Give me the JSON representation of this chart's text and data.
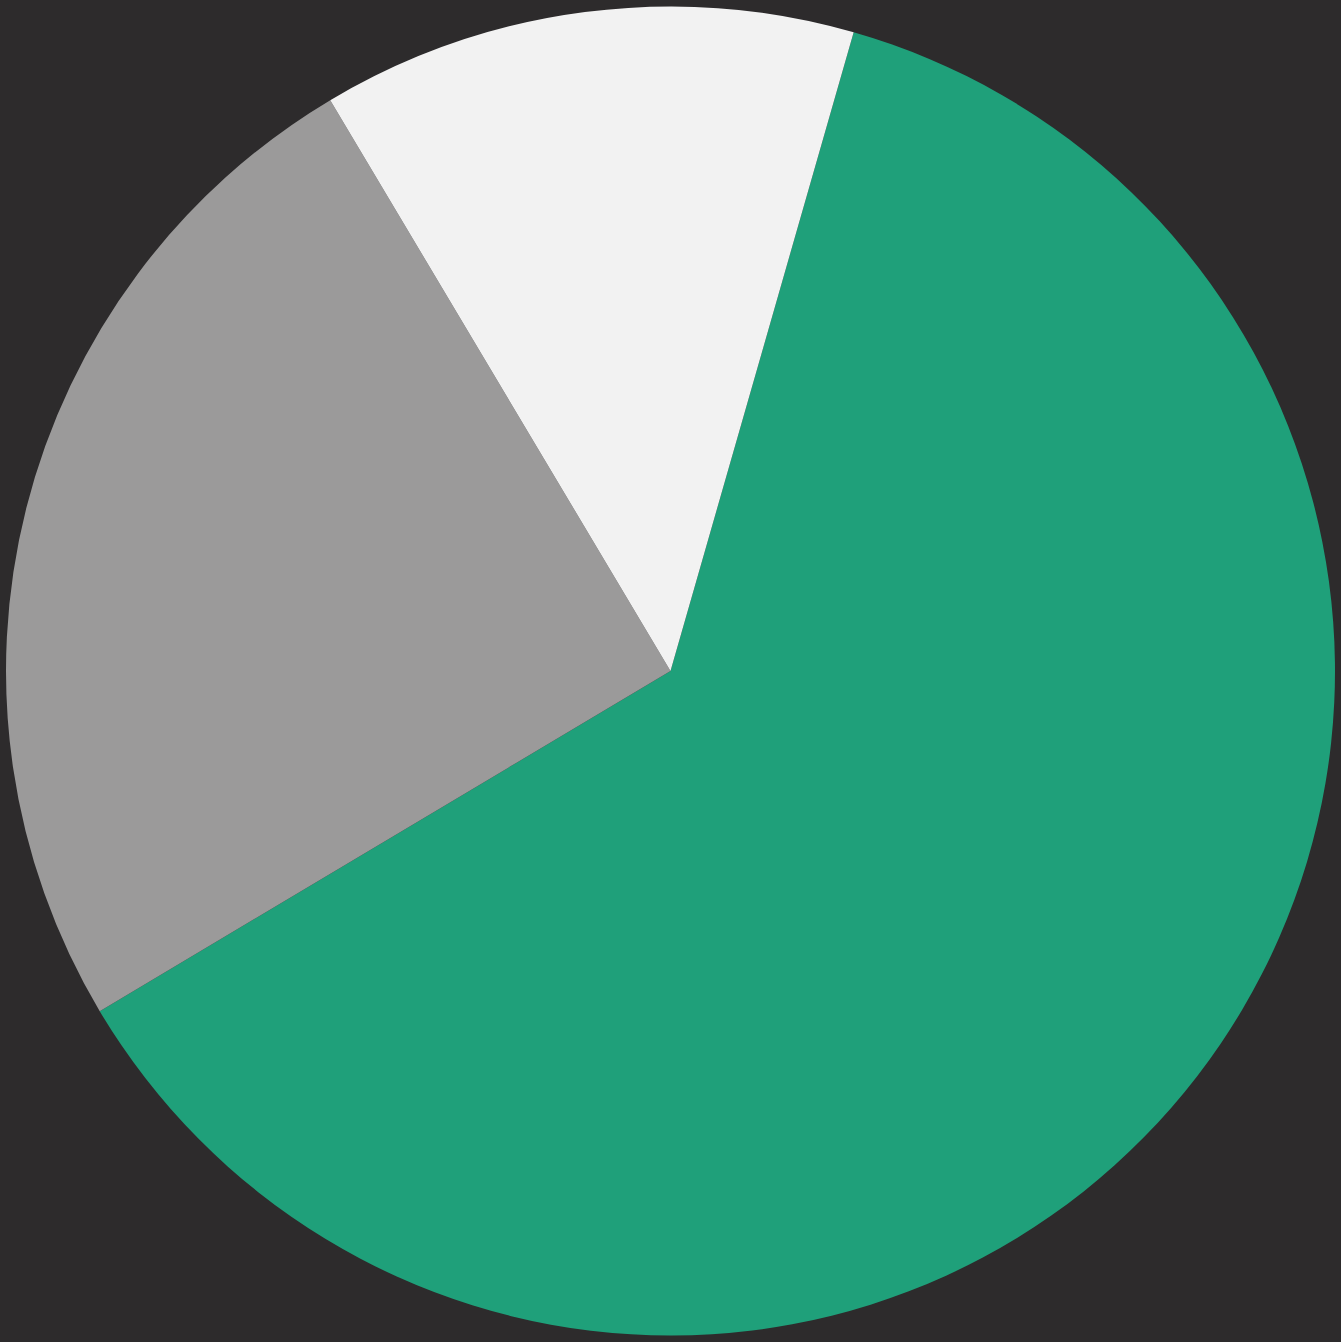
{
  "chart_data": {
    "type": "pie",
    "categories": [
      null,
      null,
      null
    ],
    "values": [
      62,
      25,
      13
    ],
    "colors": [
      "#1fa07a",
      "#9b9a9a",
      "#f2f2f2"
    ],
    "legend": false
  }
}
